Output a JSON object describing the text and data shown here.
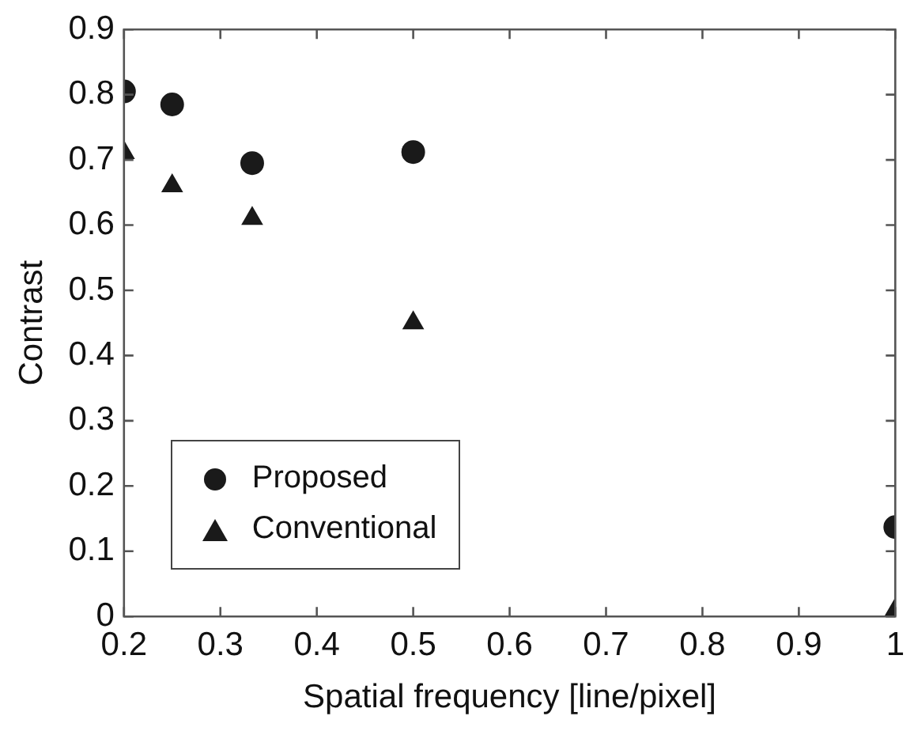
{
  "chart_data": {
    "type": "scatter",
    "xlabel": "Spatial frequency [line/pixel]",
    "ylabel": "Contrast",
    "x": [
      0.2,
      0.25,
      0.333,
      0.5,
      1
    ],
    "series": [
      {
        "name": "Proposed",
        "color": "#1a1a1a",
        "marker": "circle",
        "values": [
          0.805,
          0.785,
          0.695,
          0.712,
          0.137
        ]
      },
      {
        "name": "Conventional",
        "color": "#1a1a1a",
        "marker": "triangle",
        "values": [
          0.711,
          0.66,
          0.61,
          0.45,
          0.01
        ]
      }
    ],
    "xlim": [
      0.2,
      1
    ],
    "xticks": [
      0.2,
      0.3,
      0.4,
      0.5,
      0.6,
      0.7,
      0.8,
      0.9,
      1
    ],
    "ylim": [
      0,
      0.9
    ],
    "yticks": [
      0,
      0.1,
      0.2,
      0.3,
      0.4,
      0.5,
      0.6,
      0.7,
      0.8,
      0.9
    ],
    "grid": false,
    "legend": "bottom left"
  }
}
